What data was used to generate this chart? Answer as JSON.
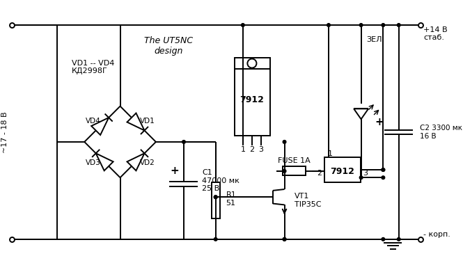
{
  "bg_color": "#ffffff",
  "line_color": "#000000",
  "title": "The UT5NC\ndesign",
  "label_ac": "~17 - 18 В",
  "label_vd14": "VD1 -- VD4\nКД2998Г",
  "label_vd4": "VD4",
  "label_vd1": "VD1",
  "label_vd3": "VD3",
  "label_vd2": "VD2",
  "label_c1": "C1\n47000 мк\n25 В",
  "label_r1": "R1\n51",
  "label_vt1": "VT1\nTIP35C",
  "label_fuse": "FUSE 1A",
  "label_7912_top": "7912",
  "label_7912_bot": "7912",
  "label_c2": "C2 3300 мк\n16 В",
  "label_led": "ЗЕЛ.",
  "label_plus14": "+14 В\nстаб.",
  "label_minus": "- корп.",
  "label_plus_c1": "+",
  "label_plus_c2": "+"
}
